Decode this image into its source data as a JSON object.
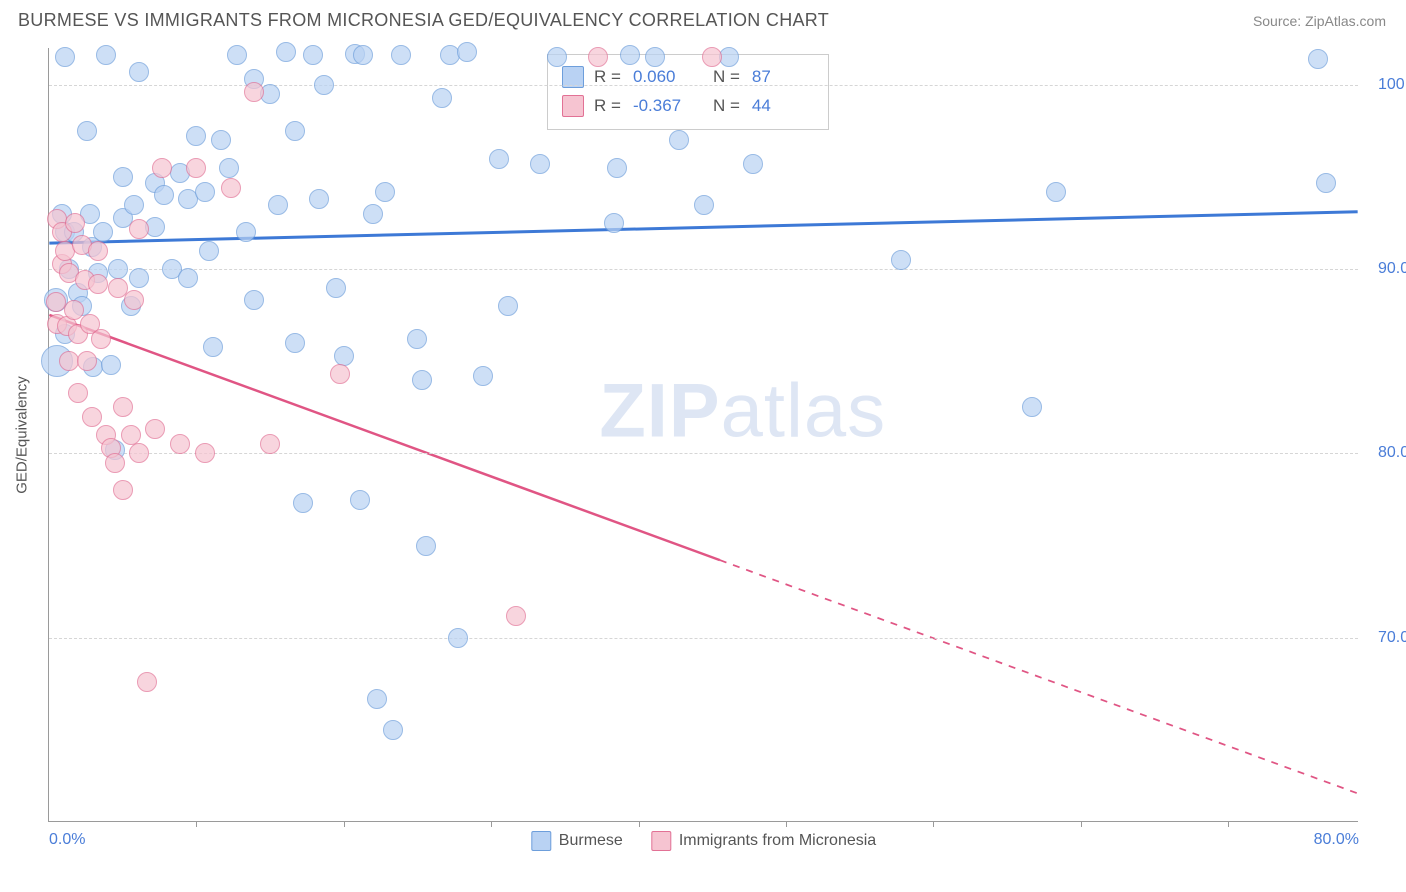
{
  "header": {
    "title": "BURMESE VS IMMIGRANTS FROM MICRONESIA GED/EQUIVALENCY CORRELATION CHART",
    "source": "Source: ZipAtlas.com"
  },
  "chart": {
    "type": "scatter",
    "ylabel": "GED/Equivalency",
    "background_color": "#ffffff",
    "grid_color": "#d6d6d6",
    "axis_color": "#9a9a9a",
    "tick_color": "#4a7dd8",
    "tick_fontsize": 16,
    "label_fontsize": 15,
    "xlim": [
      0,
      80
    ],
    "ylim": [
      60,
      102
    ],
    "yticks": [
      {
        "v": 70,
        "label": "70.0%"
      },
      {
        "v": 80,
        "label": "80.0%"
      },
      {
        "v": 90,
        "label": "90.0%"
      },
      {
        "v": 100,
        "label": "100.0%"
      }
    ],
    "xticks_labeled": [
      {
        "v": 0,
        "label": "0.0%"
      },
      {
        "v": 80,
        "label": "80.0%"
      }
    ],
    "xticks_marks": [
      9,
      18,
      27,
      36,
      45,
      54,
      63,
      72
    ],
    "watermark": {
      "zip": "ZIP",
      "rest": "atlas"
    },
    "series": [
      {
        "name": "Burmese",
        "fill": "#b9d2f3",
        "stroke": "#6d9edb",
        "opacity": 0.7,
        "marker_radius": 10,
        "line_color": "#3d79d6",
        "line_width": 3,
        "trend": {
          "x1": 0,
          "y1": 91.4,
          "x2": 80,
          "y2": 93.1,
          "dash_after_x": 80
        },
        "R": "0.060",
        "N": "87",
        "points": [
          {
            "x": 0.4,
            "y": 88.3,
            "r": 12
          },
          {
            "x": 0.5,
            "y": 85.0,
            "r": 16
          },
          {
            "x": 0.8,
            "y": 93.0
          },
          {
            "x": 1.0,
            "y": 92.0
          },
          {
            "x": 1.0,
            "y": 86.5
          },
          {
            "x": 1.0,
            "y": 101.5
          },
          {
            "x": 1.2,
            "y": 90.0
          },
          {
            "x": 1.5,
            "y": 92.0
          },
          {
            "x": 1.8,
            "y": 88.7
          },
          {
            "x": 2.0,
            "y": 88.0
          },
          {
            "x": 2.3,
            "y": 97.5
          },
          {
            "x": 2.5,
            "y": 93.0
          },
          {
            "x": 2.6,
            "y": 91.2
          },
          {
            "x": 2.7,
            "y": 84.7
          },
          {
            "x": 3.0,
            "y": 89.8
          },
          {
            "x": 3.3,
            "y": 92.0
          },
          {
            "x": 3.5,
            "y": 101.6
          },
          {
            "x": 3.8,
            "y": 84.8
          },
          {
            "x": 4.0,
            "y": 80.2
          },
          {
            "x": 4.2,
            "y": 90.0
          },
          {
            "x": 4.5,
            "y": 95.0
          },
          {
            "x": 4.5,
            "y": 92.8
          },
          {
            "x": 5.0,
            "y": 88.0
          },
          {
            "x": 5.2,
            "y": 93.5
          },
          {
            "x": 5.5,
            "y": 100.7
          },
          {
            "x": 5.5,
            "y": 89.5
          },
          {
            "x": 6.5,
            "y": 94.7
          },
          {
            "x": 6.5,
            "y": 92.3
          },
          {
            "x": 7.0,
            "y": 94.0
          },
          {
            "x": 7.5,
            "y": 90.0
          },
          {
            "x": 8.0,
            "y": 95.2
          },
          {
            "x": 8.5,
            "y": 93.8
          },
          {
            "x": 8.5,
            "y": 89.5
          },
          {
            "x": 9.0,
            "y": 97.2
          },
          {
            "x": 9.5,
            "y": 94.2
          },
          {
            "x": 9.8,
            "y": 91.0
          },
          {
            "x": 10.0,
            "y": 85.8
          },
          {
            "x": 10.5,
            "y": 97.0
          },
          {
            "x": 11.0,
            "y": 95.5
          },
          {
            "x": 11.5,
            "y": 101.6
          },
          {
            "x": 12.0,
            "y": 92.0
          },
          {
            "x": 12.5,
            "y": 100.3
          },
          {
            "x": 12.5,
            "y": 88.3
          },
          {
            "x": 13.5,
            "y": 99.5
          },
          {
            "x": 14.0,
            "y": 93.5
          },
          {
            "x": 14.5,
            "y": 101.8
          },
          {
            "x": 15.0,
            "y": 86.0
          },
          {
            "x": 15.0,
            "y": 97.5
          },
          {
            "x": 15.5,
            "y": 77.3
          },
          {
            "x": 16.1,
            "y": 101.6
          },
          {
            "x": 16.5,
            "y": 93.8
          },
          {
            "x": 16.8,
            "y": 100.0
          },
          {
            "x": 17.5,
            "y": 89.0
          },
          {
            "x": 18.0,
            "y": 85.3
          },
          {
            "x": 18.7,
            "y": 101.7
          },
          {
            "x": 19.0,
            "y": 77.5
          },
          {
            "x": 19.2,
            "y": 101.6
          },
          {
            "x": 19.8,
            "y": 93.0
          },
          {
            "x": 20.0,
            "y": 66.7
          },
          {
            "x": 20.5,
            "y": 94.2
          },
          {
            "x": 21.0,
            "y": 65.0
          },
          {
            "x": 21.5,
            "y": 101.6
          },
          {
            "x": 22.5,
            "y": 86.2
          },
          {
            "x": 22.8,
            "y": 84.0
          },
          {
            "x": 23.0,
            "y": 75.0
          },
          {
            "x": 24.0,
            "y": 99.3
          },
          {
            "x": 24.5,
            "y": 101.6
          },
          {
            "x": 25.0,
            "y": 70.0
          },
          {
            "x": 25.5,
            "y": 101.8
          },
          {
            "x": 26.5,
            "y": 84.2
          },
          {
            "x": 27.5,
            "y": 96.0
          },
          {
            "x": 28.0,
            "y": 88.0
          },
          {
            "x": 30.0,
            "y": 95.7
          },
          {
            "x": 31.0,
            "y": 101.5
          },
          {
            "x": 34.5,
            "y": 92.5
          },
          {
            "x": 34.7,
            "y": 95.5
          },
          {
            "x": 35.5,
            "y": 101.6
          },
          {
            "x": 37.0,
            "y": 101.5
          },
          {
            "x": 38.5,
            "y": 97.0
          },
          {
            "x": 40.0,
            "y": 93.5
          },
          {
            "x": 41.5,
            "y": 101.5
          },
          {
            "x": 43.0,
            "y": 95.7
          },
          {
            "x": 52.0,
            "y": 90.5
          },
          {
            "x": 60.0,
            "y": 82.5
          },
          {
            "x": 61.5,
            "y": 94.2
          },
          {
            "x": 77.5,
            "y": 101.4
          },
          {
            "x": 78.0,
            "y": 94.7
          }
        ]
      },
      {
        "name": "Immigrants from Micronesia",
        "fill": "#f6c4d1",
        "stroke": "#e27195",
        "opacity": 0.7,
        "marker_radius": 10,
        "line_color": "#e05584",
        "line_width": 2.5,
        "trend": {
          "x1": 0,
          "y1": 87.5,
          "x2": 80,
          "y2": 61.5,
          "dash_after_x": 41
        },
        "R": "-0.367",
        "N": "44",
        "points": [
          {
            "x": 0.4,
            "y": 88.2
          },
          {
            "x": 0.5,
            "y": 92.7
          },
          {
            "x": 0.5,
            "y": 87.0
          },
          {
            "x": 0.8,
            "y": 92.0
          },
          {
            "x": 0.8,
            "y": 90.3
          },
          {
            "x": 1.0,
            "y": 91.0
          },
          {
            "x": 1.1,
            "y": 86.9
          },
          {
            "x": 1.2,
            "y": 85.0
          },
          {
            "x": 1.2,
            "y": 89.8
          },
          {
            "x": 1.5,
            "y": 87.8
          },
          {
            "x": 1.6,
            "y": 92.5
          },
          {
            "x": 1.8,
            "y": 83.3
          },
          {
            "x": 1.8,
            "y": 86.5
          },
          {
            "x": 2.0,
            "y": 91.3
          },
          {
            "x": 2.2,
            "y": 89.4
          },
          {
            "x": 2.3,
            "y": 85.0
          },
          {
            "x": 2.5,
            "y": 87.0
          },
          {
            "x": 2.6,
            "y": 82.0
          },
          {
            "x": 3.0,
            "y": 89.2
          },
          {
            "x": 3.0,
            "y": 91.0
          },
          {
            "x": 3.2,
            "y": 86.2
          },
          {
            "x": 3.5,
            "y": 81.0
          },
          {
            "x": 3.8,
            "y": 80.3
          },
          {
            "x": 4.0,
            "y": 79.5
          },
          {
            "x": 4.2,
            "y": 89.0
          },
          {
            "x": 4.5,
            "y": 82.5
          },
          {
            "x": 4.5,
            "y": 78.0
          },
          {
            "x": 5.0,
            "y": 81.0
          },
          {
            "x": 5.2,
            "y": 88.3
          },
          {
            "x": 5.5,
            "y": 92.2
          },
          {
            "x": 5.5,
            "y": 80.0
          },
          {
            "x": 6.0,
            "y": 67.6
          },
          {
            "x": 6.5,
            "y": 81.3
          },
          {
            "x": 6.9,
            "y": 95.5
          },
          {
            "x": 8.0,
            "y": 80.5
          },
          {
            "x": 9.0,
            "y": 95.5
          },
          {
            "x": 9.5,
            "y": 80.0
          },
          {
            "x": 11.1,
            "y": 94.4
          },
          {
            "x": 12.5,
            "y": 99.6
          },
          {
            "x": 13.5,
            "y": 80.5
          },
          {
            "x": 17.8,
            "y": 84.3
          },
          {
            "x": 28.5,
            "y": 71.2
          },
          {
            "x": 33.5,
            "y": 101.5
          },
          {
            "x": 40.5,
            "y": 101.5
          }
        ]
      }
    ],
    "legend_bottom": [
      {
        "label": "Burmese",
        "fill": "#b9d2f3",
        "stroke": "#6d9edb"
      },
      {
        "label": "Immigrants from Micronesia",
        "fill": "#f6c4d1",
        "stroke": "#e27195"
      }
    ]
  }
}
